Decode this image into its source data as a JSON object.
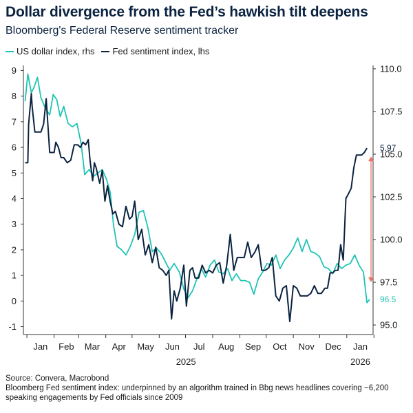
{
  "header": {
    "title": "Dollar divergence from the Fed’s hawkish tilt deepens",
    "subtitle": "Bloomberg's Federal Reserve sentiment tracker"
  },
  "legend": [
    {
      "label": "US dollar index, rhs",
      "color": "#1ec4b4"
    },
    {
      "label": "Fed sentiment index, lhs",
      "color": "#0b2340"
    }
  ],
  "footer": {
    "source": "Source: Convera, Macrobond",
    "note": "Bloomberg Fed sentiment index: underpinned by an algorithm trained in Bbg news headlines covering ~6,200 speaking engagements by Fed officials since 2009"
  },
  "colors": {
    "dollar": "#1ec4b4",
    "fed": "#0b2340",
    "arrow": "#e8736a"
  },
  "chart_data": {
    "type": "line",
    "title": "Dollar divergence from the Fed’s hawkish tilt deepens",
    "subtitle": "Bloomberg's Federal Reserve sentiment tracker",
    "x_tick_labels": [
      "Jan",
      "Feb",
      "Mar",
      "Apr",
      "May",
      "Jun",
      "Jul",
      "Aug",
      "Sep",
      "Oct",
      "Nov",
      "Dec",
      "Jan"
    ],
    "year_labels": [
      "2025",
      "2026"
    ],
    "left_axis": {
      "ticks": [
        "9",
        "8",
        "7",
        "6",
        "5",
        "4",
        "3",
        "2",
        "1",
        "0",
        "-1"
      ],
      "ylim": [
        -1.2,
        9.2
      ]
    },
    "right_axis": {
      "ticks": [
        "110.0",
        "107.5",
        "105.0",
        "102.5",
        "100.0",
        "97.5",
        "95.0"
      ],
      "ylim": [
        94.6,
        110.2
      ]
    },
    "end_labels": {
      "fed": "5.97",
      "dollar": "96.5"
    },
    "grid": false,
    "legend_position": "top-left",
    "series": [
      {
        "name": "US dollar index, rhs",
        "axis": "right",
        "x": [
          "2024-12-30",
          "2025-01-02",
          "2025-01-06",
          "2025-01-09",
          "2025-01-13",
          "2025-01-17",
          "2025-01-22",
          "2025-01-27",
          "2025-01-31",
          "2025-02-04",
          "2025-02-08",
          "2025-02-12",
          "2025-02-17",
          "2025-02-22",
          "2025-02-27",
          "2025-03-04",
          "2025-03-08",
          "2025-03-13",
          "2025-03-18",
          "2025-03-23",
          "2025-03-28",
          "2025-04-02",
          "2025-04-06",
          "2025-04-10",
          "2025-04-14",
          "2025-04-19",
          "2025-04-24",
          "2025-04-29",
          "2025-05-04",
          "2025-05-09",
          "2025-05-14",
          "2025-05-19",
          "2025-05-24",
          "2025-05-29",
          "2025-06-03",
          "2025-06-08",
          "2025-06-13",
          "2025-06-18",
          "2025-06-24",
          "2025-06-29",
          "2025-07-04",
          "2025-07-09",
          "2025-07-14",
          "2025-07-19",
          "2025-07-24",
          "2025-07-29",
          "2025-08-03",
          "2025-08-08",
          "2025-08-13",
          "2025-08-18",
          "2025-08-23",
          "2025-08-28",
          "2025-09-02",
          "2025-09-07",
          "2025-09-12",
          "2025-09-17",
          "2025-09-22",
          "2025-09-27",
          "2025-10-02",
          "2025-10-07",
          "2025-10-12",
          "2025-10-17",
          "2025-10-22",
          "2025-10-27",
          "2025-11-01",
          "2025-11-06",
          "2025-11-11",
          "2025-11-16",
          "2025-11-21",
          "2025-11-26",
          "2025-12-01",
          "2025-12-06",
          "2025-12-11",
          "2025-12-16",
          "2025-12-21",
          "2025-12-26",
          "2025-12-31",
          "2026-01-05",
          "2026-01-10",
          "2026-01-15",
          "2026-01-20",
          "2026-01-24",
          "2026-01-27"
        ],
        "values": [
          108.1,
          109.7,
          108.6,
          108.9,
          109.5,
          108.3,
          107.7,
          107.3,
          108.5,
          108.2,
          107.2,
          107.8,
          106.8,
          106.6,
          106.8,
          105.6,
          103.8,
          104.1,
          103.7,
          103.9,
          104.1,
          103.5,
          102.8,
          100.8,
          99.6,
          99.4,
          99.1,
          99.6,
          100.3,
          101.6,
          101.7,
          100.7,
          99.3,
          99.5,
          99.2,
          98.7,
          98.2,
          98.6,
          98.1,
          97.1,
          96.6,
          97.0,
          97.7,
          98.3,
          97.8,
          98.5,
          98.8,
          98.1,
          98.0,
          98.3,
          97.6,
          98.0,
          97.6,
          97.6,
          97.5,
          96.8,
          97.7,
          98.1,
          98.6,
          98.5,
          99.1,
          98.3,
          98.8,
          99.1,
          99.5,
          100.1,
          99.3,
          100.0,
          99.3,
          99.2,
          99.0,
          98.4,
          98.3,
          98.0,
          98.6,
          98.3,
          98.5,
          98.6,
          99.1,
          98.5,
          98.1,
          96.3,
          96.5
        ]
      },
      {
        "name": "Fed sentiment index, lhs",
        "axis": "left",
        "x": [
          "2024-12-30",
          "2025-01-02",
          "2025-01-03",
          "2025-01-06",
          "2025-01-07",
          "2025-01-10",
          "2025-01-11",
          "2025-01-14",
          "2025-01-17",
          "2025-01-20",
          "2025-01-23",
          "2025-01-27",
          "2025-02-01",
          "2025-02-03",
          "2025-02-06",
          "2025-02-09",
          "2025-02-12",
          "2025-02-16",
          "2025-02-20",
          "2025-02-24",
          "2025-02-28",
          "2025-03-03",
          "2025-03-06",
          "2025-03-09",
          "2025-03-12",
          "2025-03-14",
          "2025-03-17",
          "2025-03-19",
          "2025-03-21",
          "2025-03-25",
          "2025-03-28",
          "2025-03-31",
          "2025-04-03",
          "2025-04-06",
          "2025-04-09",
          "2025-04-12",
          "2025-04-16",
          "2025-04-20",
          "2025-04-24",
          "2025-04-28",
          "2025-05-01",
          "2025-05-04",
          "2025-05-08",
          "2025-05-12",
          "2025-05-16",
          "2025-05-20",
          "2025-05-24",
          "2025-05-28",
          "2025-06-01",
          "2025-06-05",
          "2025-06-09",
          "2025-06-12",
          "2025-06-15",
          "2025-06-18",
          "2025-06-21",
          "2025-06-25",
          "2025-06-29",
          "2025-07-02",
          "2025-07-06",
          "2025-07-09",
          "2025-07-12",
          "2025-07-16",
          "2025-07-20",
          "2025-07-24",
          "2025-07-28",
          "2025-08-01",
          "2025-08-05",
          "2025-08-09",
          "2025-08-13",
          "2025-08-17",
          "2025-08-21",
          "2025-08-25",
          "2025-08-29",
          "2025-09-02",
          "2025-09-06",
          "2025-09-10",
          "2025-09-14",
          "2025-09-18",
          "2025-09-22",
          "2025-09-26",
          "2025-09-30",
          "2025-10-04",
          "2025-10-08",
          "2025-10-12",
          "2025-10-16",
          "2025-10-20",
          "2025-10-24",
          "2025-10-28",
          "2025-11-01",
          "2025-11-05",
          "2025-11-09",
          "2025-11-13",
          "2025-11-17",
          "2025-11-21",
          "2025-11-25",
          "2025-11-29",
          "2025-12-03",
          "2025-12-07",
          "2025-12-10",
          "2025-12-13",
          "2025-12-16",
          "2025-12-19",
          "2025-12-22",
          "2025-12-25",
          "2025-12-28",
          "2025-12-31",
          "2026-01-03",
          "2026-01-06",
          "2026-01-09",
          "2026-01-12",
          "2026-01-15",
          "2026-01-18",
          "2026-01-21",
          "2026-01-24"
        ],
        "values": [
          5.4,
          5.4,
          6.9,
          8.1,
          7.6,
          6.6,
          6.6,
          6.6,
          6.6,
          6.9,
          7.9,
          5.8,
          5.8,
          6.2,
          6.0,
          5.6,
          5.6,
          5.4,
          5.5,
          6.1,
          6.1,
          6.0,
          6.2,
          6.1,
          6.3,
          5.5,
          4.7,
          5.4,
          5.2,
          4.6,
          5.1,
          3.9,
          4.5,
          3.9,
          3.4,
          3.5,
          3.0,
          2.9,
          3.7,
          3.2,
          3.3,
          3.9,
          2.4,
          2.8,
          1.8,
          2.2,
          1.5,
          2.1,
          1.3,
          1.2,
          1.0,
          1.2,
          -0.7,
          0.4,
          0.0,
          0.5,
          1.4,
          -0.2,
          1.2,
          1.3,
          0.9,
          0.9,
          1.4,
          1.1,
          1.2,
          1.1,
          1.4,
          1.5,
          0.7,
          1.4,
          2.6,
          1.2,
          1.7,
          1.7,
          1.7,
          2.3,
          1.7,
          1.9,
          2.2,
          1.2,
          1.2,
          1.3,
          1.7,
          0.2,
          0.0,
          0.5,
          0.6,
          -0.8,
          0.6,
          0.5,
          0.2,
          0.2,
          0.2,
          0.3,
          0.6,
          0.3,
          0.3,
          0.5,
          0.5,
          1.1,
          1.1,
          1.2,
          1.2,
          2.2,
          1.6,
          4.0,
          4.2,
          4.4,
          5.2,
          5.7,
          5.7,
          5.7,
          5.8,
          5.97
        ]
      }
    ]
  }
}
